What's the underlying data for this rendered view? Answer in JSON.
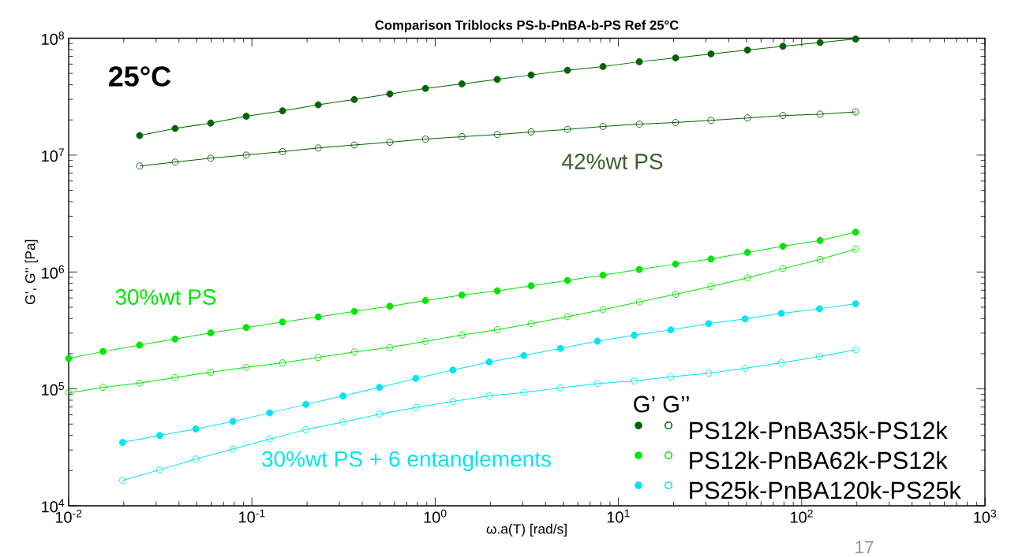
{
  "chart_data": {
    "type": "line",
    "title": "Comparison Triblocks PS-b-PnBA-b-PS Ref 25°C",
    "xlabel": "ω.a(T)  [rad/s]",
    "ylabel": "G’, G’’  [Pa]",
    "legend_title": "G’ G’’",
    "log": "xy",
    "legend": "bottom right",
    "marker": "circle",
    "line_style": "solid",
    "grid": false,
    "xlim": [
      0.01,
      1000
    ],
    "ylim": [
      10000,
      100000000
    ],
    "xticks": [
      {
        "value": 0.01,
        "label": "10$^{-2}$"
      },
      {
        "value": 0.1,
        "label": "10$^{-1}$"
      },
      {
        "value": 1,
        "label": "10$^{0}$"
      },
      {
        "value": 10,
        "label": "10$^{1}$"
      },
      {
        "value": 100,
        "label": "10$^{2}$"
      },
      {
        "value": 1000,
        "label": "10$^{3}$"
      }
    ],
    "yticks": [
      {
        "value": 10000,
        "label": "10$^{4}$"
      },
      {
        "value": 100000,
        "label": "10$^{5}$"
      },
      {
        "value": 1000000,
        "label": "10$^{6}$"
      },
      {
        "value": 10000000,
        "label": "10$^{7}$"
      },
      {
        "value": 100000000,
        "label": "10$^{8}$"
      }
    ],
    "annotations": [
      "25°C",
      "42%wt PS",
      "30%wt PS",
      "30%wt PS + 6  entanglements",
      "17"
    ],
    "series": [
      {
        "name": "PS12k-PnBA35k-PS12k",
        "color": "#006400",
        "x": [
          0.0244,
          0.0381,
          0.0596,
          0.0931,
          0.147,
          0.23,
          0.362,
          0.566,
          0.885,
          1.4,
          2.18,
          3.34,
          5.27,
          8.24,
          13,
          20.5,
          32,
          50.6,
          79,
          126,
          197
        ],
        "values": [
          14700000,
          16900000,
          18800000,
          21500000,
          23900000,
          26900000,
          29900000,
          33400000,
          37200000,
          40700000,
          44400000,
          48500000,
          53200000,
          57300000,
          62900000,
          67800000,
          73400000,
          79100000,
          85300000,
          91800000,
          98300000
        ]
      },
      {
        "color": "#006400",
        "x": [
          0.0244,
          0.0381,
          0.0596,
          0.0931,
          0.147,
          0.23,
          0.362,
          0.566,
          0.885,
          1.4,
          2.18,
          3.34,
          5.27,
          8.24,
          13,
          20.5,
          32,
          50.6,
          79,
          126,
          197
        ],
        "values": [
          8060000,
          8710000,
          9410000,
          10000000,
          10700000,
          11500000,
          12200000,
          12900000,
          13700000,
          14400000,
          15000000,
          15800000,
          16600000,
          17600000,
          18400000,
          19000000,
          19800000,
          20800000,
          21800000,
          22400000,
          23400000
        ]
      },
      {
        "name": "PS12k-PnBA62k-PS12k",
        "color": "#00e600",
        "x": [
          0.01,
          0.0154,
          0.0244,
          0.0381,
          0.0596,
          0.0931,
          0.147,
          0.23,
          0.362,
          0.566,
          0.885,
          1.4,
          2.18,
          3.34,
          5.27,
          8.24,
          13,
          20.5,
          32,
          50.6,
          79,
          126,
          197
        ],
        "values": [
          182000,
          209000,
          237000,
          267000,
          301000,
          335000,
          373000,
          413000,
          460000,
          509000,
          570000,
          635000,
          690000,
          762000,
          847000,
          941000,
          1050000,
          1170000,
          1290000,
          1470000,
          1660000,
          1860000,
          2190000
        ]
      },
      {
        "color": "#00e600",
        "x": [
          0.01,
          0.0154,
          0.0244,
          0.0381,
          0.0596,
          0.0931,
          0.147,
          0.23,
          0.362,
          0.566,
          0.885,
          1.4,
          2.18,
          3.34,
          5.27,
          8.24,
          13,
          20.5,
          32,
          50.6,
          79,
          126,
          197
        ],
        "values": [
          92400,
          103000,
          112000,
          125000,
          139000,
          153000,
          167000,
          186000,
          207000,
          226000,
          255000,
          289000,
          321000,
          362000,
          415000,
          476000,
          555000,
          645000,
          753000,
          890000,
          1070000,
          1280000,
          1570000
        ]
      },
      {
        "name": "PS25k-PnBA120k-PS25k",
        "color": "#00e5ee",
        "x": [
          0.0197,
          0.0314,
          0.0494,
          0.0787,
          0.125,
          0.197,
          0.314,
          0.497,
          0.785,
          1.25,
          1.97,
          3.05,
          4.82,
          7.68,
          12.2,
          19.3,
          31.1,
          49.1,
          77.4,
          125,
          197
        ],
        "values": [
          34900,
          40000,
          45400,
          52700,
          62300,
          73600,
          87000,
          103000,
          123000,
          145000,
          170000,
          193000,
          222000,
          256000,
          288000,
          320000,
          362000,
          397000,
          442000,
          485000,
          535000
        ]
      },
      {
        "color": "#00e5ee",
        "x": [
          0.0197,
          0.0314,
          0.0494,
          0.0787,
          0.125,
          0.197,
          0.314,
          0.497,
          0.785,
          1.25,
          1.97,
          3.05,
          4.82,
          7.68,
          12.2,
          19.3,
          31.1,
          49.1,
          77.4,
          125,
          197
        ],
        "values": [
          16500,
          20300,
          25100,
          30600,
          37300,
          44800,
          52100,
          60800,
          69300,
          78100,
          87000,
          92900,
          102000,
          111000,
          117000,
          127000,
          136000,
          150000,
          167000,
          189000,
          216000
        ]
      }
    ]
  }
}
